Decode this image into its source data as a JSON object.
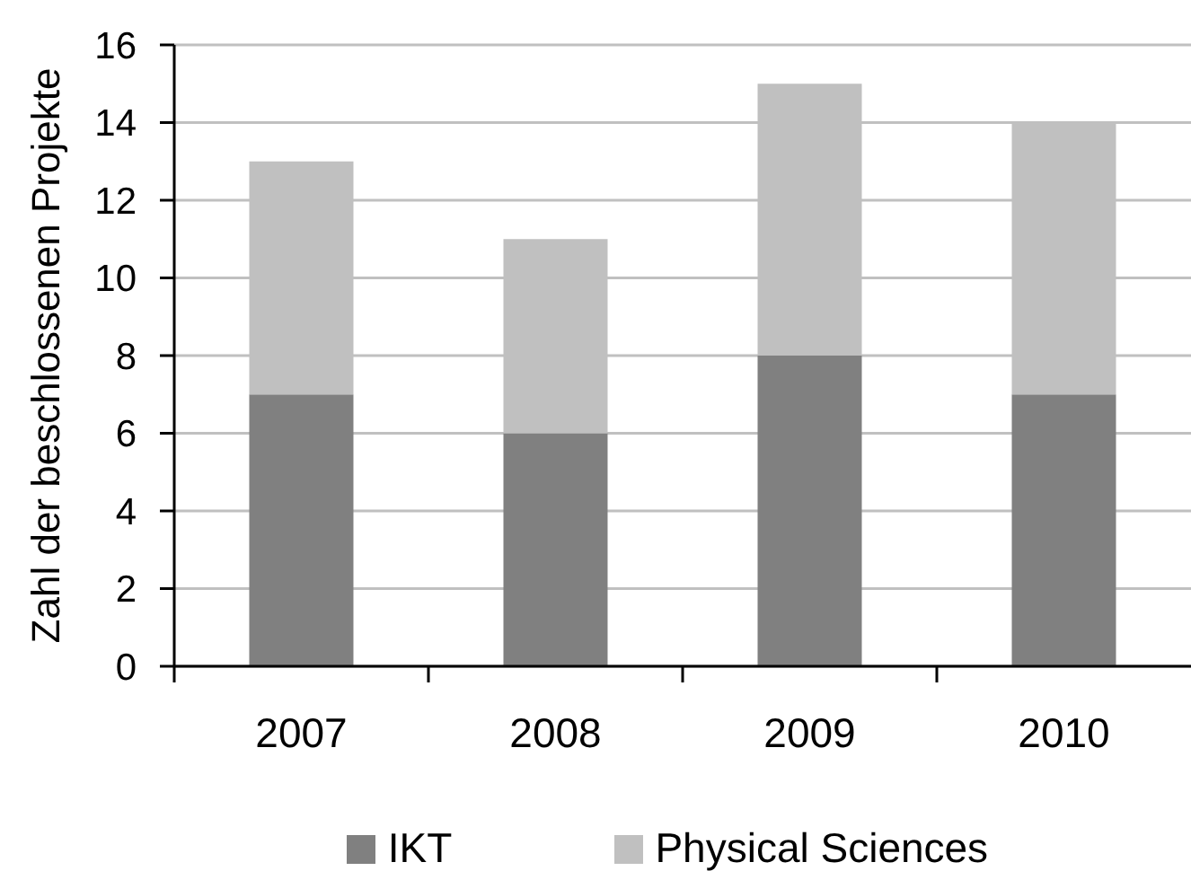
{
  "chart_data": {
    "type": "bar",
    "stacked": true,
    "ylabel": "Zahl der beschlossenen Projekte",
    "categories": [
      "2007",
      "2008",
      "2009",
      "2010"
    ],
    "series": [
      {
        "name": "IKT",
        "color": "#808080",
        "values": [
          7,
          6,
          8,
          7
        ]
      },
      {
        "name": "Physical Sciences",
        "color": "#c0c0c0",
        "values": [
          6,
          5,
          7,
          7
        ]
      }
    ],
    "ylim": [
      0,
      16
    ],
    "yticks": [
      0,
      2,
      4,
      6,
      8,
      10,
      12,
      14,
      16
    ],
    "grid": "y",
    "legend": "bottom"
  }
}
